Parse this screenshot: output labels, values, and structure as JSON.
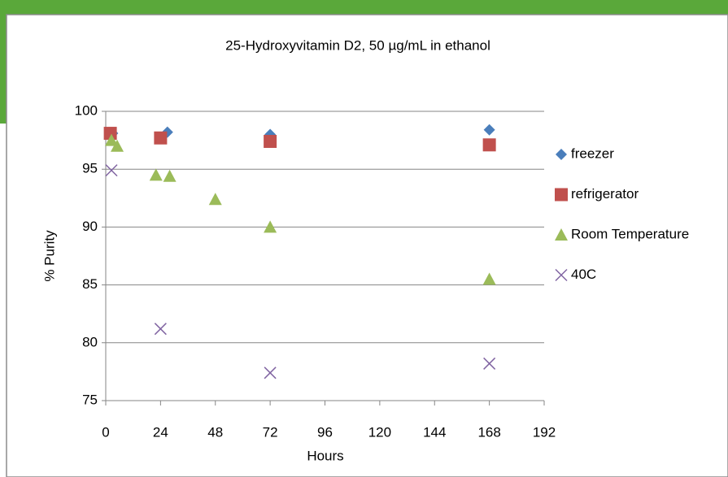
{
  "chart_data": {
    "type": "scatter",
    "title": "25-Hydroxyvitamin D2, 50 µg/mL in ethanol",
    "x_label": "Hours",
    "y_label": "% Purity",
    "xlim": [
      0,
      192
    ],
    "xticks": [
      0,
      24,
      48,
      72,
      96,
      120,
      144,
      168,
      192
    ],
    "ylim": [
      75,
      100
    ],
    "yticks": [
      75,
      80,
      85,
      90,
      95,
      100
    ],
    "grid": true,
    "legend": "right",
    "series": [
      {
        "name": "freezer",
        "color": "#4a7ebb",
        "marker": "diamond",
        "x": [
          3,
          27,
          72,
          168
        ],
        "values": [
          98.1,
          98.2,
          98.0,
          98.4
        ]
      },
      {
        "name": "refrigerator",
        "color": "#c0504d",
        "marker": "square",
        "x": [
          2,
          24,
          72,
          168
        ],
        "values": [
          98.1,
          97.7,
          97.4,
          97.1
        ]
      },
      {
        "name": "Room Temperature",
        "color": "#9bbb59",
        "marker": "triangle",
        "x": [
          2.5,
          5,
          22,
          28,
          48,
          72,
          168
        ],
        "values": [
          97.5,
          97.0,
          94.5,
          94.4,
          92.4,
          90.0,
          85.5
        ]
      },
      {
        "name": "40C",
        "color": "#8064a2",
        "marker": "x",
        "x": [
          2.5,
          24,
          72,
          168
        ],
        "values": [
          94.9,
          81.2,
          77.4,
          78.2
        ]
      }
    ]
  }
}
